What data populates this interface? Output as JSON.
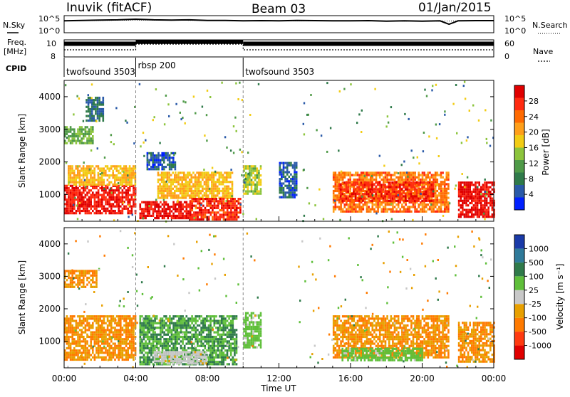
{
  "header": {
    "station": "Inuvik (fitACF)",
    "beam": "Beam 03",
    "date": "01/Jan/2015"
  },
  "strips": {
    "left_nsky": "N.Sky",
    "left_freq_line1": "Freq.",
    "left_freq_line2": "[MHz]",
    "left_cpid": "CPID",
    "right_nsearch": "N.Search",
    "right_nave": "Nave",
    "nsky_ticks": [
      "10^5",
      "10^0"
    ],
    "nsearch_ticks": [
      "10^5",
      "10^0"
    ],
    "freq_ticks": [
      "10",
      "8"
    ],
    "nave_ticks": [
      "60",
      "0"
    ]
  },
  "cpid_segments": [
    {
      "label": "twofsound 3503",
      "start_hour": 0
    },
    {
      "label": "rbsp 200",
      "start_hour": 4
    },
    {
      "label": "twofsound 3503",
      "start_hour": 10
    }
  ],
  "x_axis": {
    "label": "Time UT",
    "ticks": [
      "00:00",
      "04:00",
      "08:00",
      "12:00",
      "16:00",
      "20:00",
      "00:00"
    ]
  },
  "power_panel": {
    "ylabel": "Slant Range [km]",
    "yticks": [
      "4000",
      "3000",
      "2000",
      "1000"
    ],
    "colorbar_label": "Power [dB]",
    "colorbar_ticks": [
      "28",
      "24",
      "20",
      "16",
      "12",
      "8",
      "4"
    ],
    "colors": [
      "#0020ff",
      "#2a5aa8",
      "#2f7a4a",
      "#4f9a48",
      "#8cc43c",
      "#f2cc14",
      "#ff9f1a",
      "#ff6a00",
      "#ff2a10",
      "#e00000"
    ]
  },
  "velocity_panel": {
    "ylabel": "Slant Range [km]",
    "yticks": [
      "4000",
      "3000",
      "2000",
      "1000"
    ],
    "colorbar_label": "Velocity [m s⁻¹]",
    "colorbar_ticks": [
      "1000",
      "500",
      "100",
      "25",
      "-25",
      "-100",
      "-500",
      "-1000"
    ],
    "colors": [
      "#1a3aa8",
      "#2f7a9a",
      "#2f7a4a",
      "#5fbf3a",
      "#c8c8c8",
      "#e8a000",
      "#ff7a00",
      "#ff3a10",
      "#e00000"
    ]
  },
  "chart_data": [
    {
      "type": "line",
      "title": "N.Sky / N.Search",
      "xlabel": "Time UT",
      "x_range_hours": [
        0,
        24
      ],
      "ylim": [
        1,
        100000
      ],
      "y_scale": "log",
      "series": [
        {
          "name": "N.Sky",
          "x": [
            0,
            1,
            2,
            3,
            4,
            5,
            6,
            7,
            8,
            9,
            10,
            11,
            12,
            13,
            14,
            15,
            16,
            17,
            18,
            19,
            20,
            21,
            21.5,
            22,
            23,
            24
          ],
          "values": [
            3000,
            4000,
            5000,
            6000,
            9000,
            6000,
            5000,
            6000,
            4000,
            4000,
            3000,
            3500,
            3000,
            4000,
            3500,
            3000,
            3000,
            3500,
            2500,
            3000,
            2500,
            3000,
            300,
            3000,
            3500,
            3500
          ]
        },
        {
          "name": "N.Search",
          "x": [
            0,
            4,
            8,
            12,
            16,
            20,
            24
          ],
          "values": [
            3000,
            5000,
            4000,
            3000,
            3000,
            2500,
            3000
          ]
        }
      ]
    },
    {
      "type": "line",
      "title": "Freq. / Nave",
      "x_range_hours": [
        0,
        24
      ],
      "series": [
        {
          "name": "Freq. [MHz]",
          "x": [
            0,
            4,
            4,
            10,
            10,
            24
          ],
          "values": [
            10.2,
            10.2,
            10.6,
            10.6,
            10.2,
            10.2
          ]
        },
        {
          "name": "Nave",
          "x": [
            0,
            4,
            4,
            10,
            10,
            24
          ],
          "values": [
            25,
            25,
            45,
            45,
            25,
            25
          ]
        }
      ]
    },
    {
      "type": "heatmap",
      "title": "Power [dB]",
      "xlabel": "Time UT",
      "ylabel": "Slant Range [km]",
      "x_range_hours": [
        0,
        24
      ],
      "ylim": [
        180,
        4500
      ],
      "colorbar_range": [
        0,
        30
      ],
      "regions": [
        {
          "t0": 0.0,
          "t1": 4.0,
          "r0": 450,
          "r1": 1300,
          "value": 27
        },
        {
          "t0": 0.2,
          "t1": 4.0,
          "r0": 1300,
          "r1": 1900,
          "value": 18
        },
        {
          "t0": 0.0,
          "t1": 1.6,
          "r0": 2600,
          "r1": 3100,
          "value": 12
        },
        {
          "t0": 1.2,
          "t1": 2.2,
          "r0": 3300,
          "r1": 4000,
          "value": 6
        },
        {
          "t0": 4.2,
          "t1": 7.0,
          "r0": 250,
          "r1": 800,
          "value": 28
        },
        {
          "t0": 5.2,
          "t1": 9.4,
          "r0": 900,
          "r1": 1700,
          "value": 18
        },
        {
          "t0": 7.0,
          "t1": 9.8,
          "r0": 250,
          "r1": 900,
          "value": 26
        },
        {
          "t0": 4.6,
          "t1": 6.2,
          "r0": 1800,
          "r1": 2300,
          "value": 5
        },
        {
          "t0": 10.0,
          "t1": 11.0,
          "r0": 1000,
          "r1": 1900,
          "value": 14
        },
        {
          "t0": 12.0,
          "t1": 13.0,
          "r0": 900,
          "r1": 2000,
          "value": 5
        },
        {
          "t0": 15.0,
          "t1": 21.5,
          "r0": 500,
          "r1": 1700,
          "value": 22
        },
        {
          "t0": 15.4,
          "t1": 20.6,
          "r0": 800,
          "r1": 1400,
          "value": 26
        },
        {
          "t0": 22.0,
          "t1": 24.0,
          "r0": 350,
          "r1": 1400,
          "value": 28
        }
      ]
    },
    {
      "type": "heatmap",
      "title": "Velocity [m s⁻¹]",
      "xlabel": "Time UT",
      "ylabel": "Slant Range [km]",
      "x_range_hours": [
        0,
        24
      ],
      "ylim": [
        180,
        4500
      ],
      "colorbar_ticks": [
        1000,
        500,
        100,
        25,
        -25,
        -100,
        -500,
        -1000
      ],
      "regions": [
        {
          "t0": 0.0,
          "t1": 4.0,
          "r0": 450,
          "r1": 1800,
          "value": -100
        },
        {
          "t0": 0.0,
          "t1": 1.8,
          "r0": 2700,
          "r1": 3200,
          "value": -100
        },
        {
          "t0": 4.2,
          "t1": 9.6,
          "r0": 300,
          "r1": 1800,
          "value": 100
        },
        {
          "t0": 5.0,
          "t1": 8.0,
          "r0": 300,
          "r1": 700,
          "value": 0
        },
        {
          "t0": 10.0,
          "t1": 11.0,
          "r0": 800,
          "r1": 1900,
          "value": 50
        },
        {
          "t0": 15.0,
          "t1": 21.5,
          "r0": 500,
          "r1": 1800,
          "value": -100
        },
        {
          "t0": 15.5,
          "t1": 20.0,
          "r0": 400,
          "r1": 800,
          "value": 50
        },
        {
          "t0": 22.0,
          "t1": 24.0,
          "r0": 350,
          "r1": 1600,
          "value": -100
        }
      ]
    }
  ]
}
